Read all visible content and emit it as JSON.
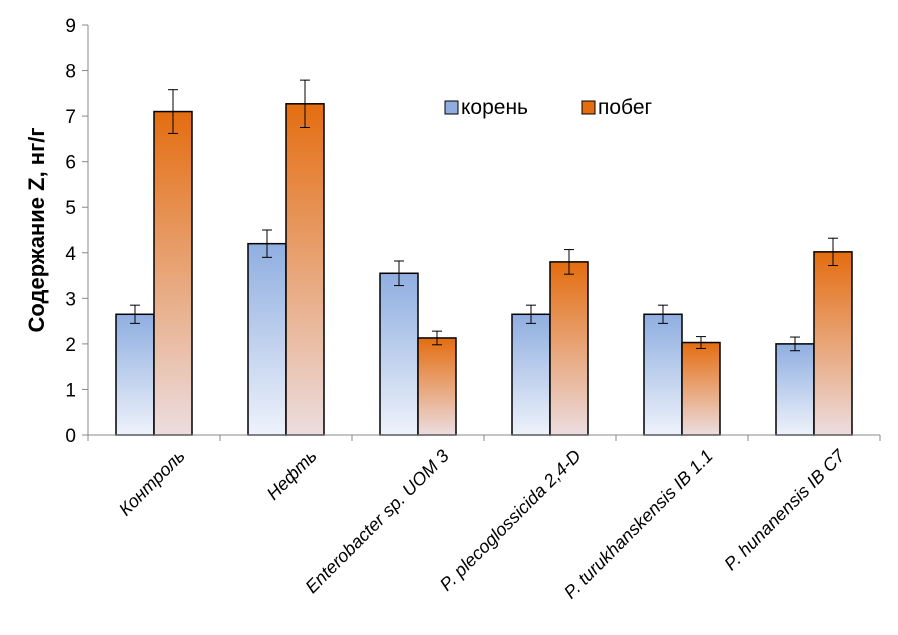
{
  "chart_data": {
    "type": "bar",
    "ylabel": "Содержание Z, нг/г",
    "xlabel": "",
    "ylim": [
      0,
      9
    ],
    "yticks": [
      0,
      1,
      2,
      3,
      4,
      5,
      6,
      7,
      8,
      9
    ],
    "categories": [
      "Контроль",
      "Нефть",
      "Enterobacter sp. UOM 3",
      "P. plecoglossicida 2,4-D",
      "P. turukhanskensis IB 1.1",
      "P. hunanensis IB C7"
    ],
    "series": [
      {
        "name": "корень",
        "values": [
          2.65,
          4.2,
          3.55,
          2.65,
          2.65,
          2.0
        ],
        "errors": [
          0.2,
          0.3,
          0.27,
          0.2,
          0.2,
          0.15
        ],
        "color_top": "#8faee0",
        "color_bottom": "#eef2fb"
      },
      {
        "name": "побег",
        "values": [
          7.1,
          7.27,
          2.13,
          3.8,
          2.03,
          4.02
        ],
        "errors": [
          0.48,
          0.52,
          0.15,
          0.27,
          0.13,
          0.3
        ],
        "color_top": "#e46d10",
        "color_bottom": "#ecdde0"
      }
    ],
    "legend_position": "top-center",
    "grid": false
  }
}
